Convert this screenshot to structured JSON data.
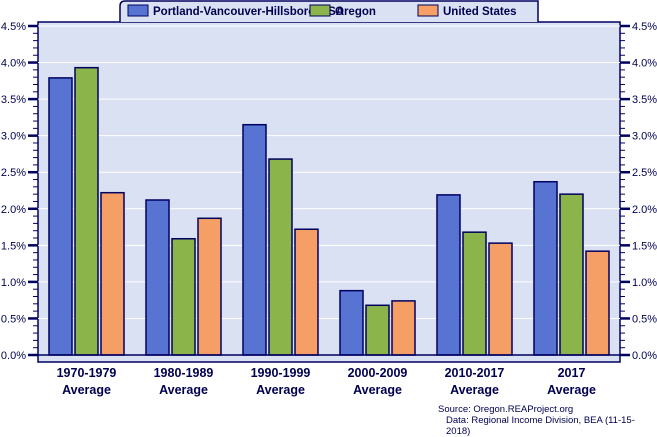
{
  "chart_data": {
    "type": "bar",
    "categories": [
      [
        "1970-1979",
        "Average"
      ],
      [
        "1980-1989",
        "Average"
      ],
      [
        "1990-1999",
        "Average"
      ],
      [
        "2000-2009",
        "Average"
      ],
      [
        "2010-2017",
        "Average"
      ],
      [
        "2017",
        "Average"
      ]
    ],
    "series": [
      {
        "name": "Portland-Vancouver-Hillsboro MSA",
        "color": "#5874d2",
        "values": [
          3.79,
          2.12,
          3.15,
          0.88,
          2.19,
          2.37
        ]
      },
      {
        "name": "Oregon",
        "color": "#8bb54a",
        "values": [
          3.93,
          1.59,
          2.68,
          0.68,
          1.68,
          2.2
        ]
      },
      {
        "name": "United States",
        "color": "#f59e66",
        "values": [
          2.22,
          1.87,
          1.72,
          0.74,
          1.53,
          1.42
        ]
      }
    ],
    "ylim": [
      0,
      4.5
    ],
    "yticks": [
      "0.0%",
      "0.5%",
      "1.0%",
      "1.5%",
      "2.0%",
      "2.5%",
      "3.0%",
      "3.5%",
      "4.0%",
      "4.5%"
    ],
    "grid": true,
    "legend": "top-center",
    "colors": {
      "plot_bg": "#d9e1f2",
      "axis": "#000060",
      "text": "#000050"
    }
  },
  "source": {
    "line1": "Source: Oregon.REAProject.org",
    "line2": "Data: Regional Income Division, BEA (11-15-2018)"
  }
}
